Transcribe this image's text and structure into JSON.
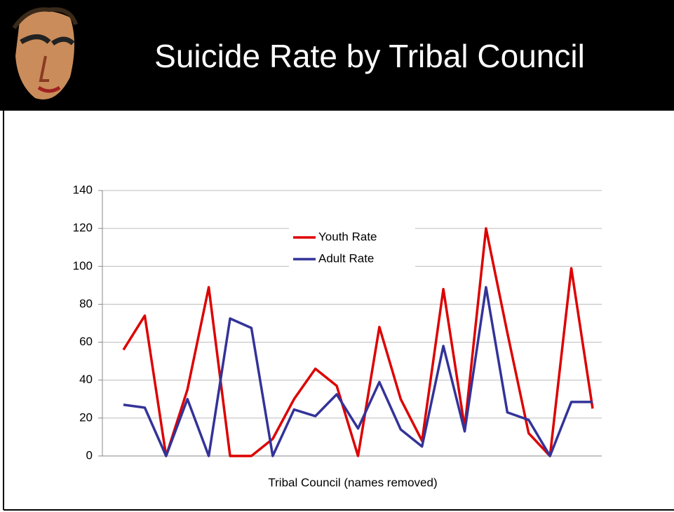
{
  "chart_data": {
    "type": "line",
    "title": "Suicide Rate by Tribal Council",
    "x_label": "Tribal Council (names removed)",
    "categories": [
      null,
      null,
      null,
      null,
      null,
      null,
      null,
      null,
      null,
      null,
      null,
      null,
      null,
      null,
      null,
      null,
      null,
      null,
      null,
      null,
      null,
      null,
      null
    ],
    "series": [
      {
        "name": "Youth Rate",
        "color": "#dd0000",
        "values": [
          56,
          74,
          0,
          35,
          89,
          0,
          0,
          9,
          30,
          46,
          37,
          0,
          68,
          30,
          8,
          88,
          15,
          120,
          65,
          12,
          0,
          99,
          25
        ]
      },
      {
        "name": "Adult Rate",
        "color": "#333399",
        "values": [
          27,
          25.5,
          0,
          30,
          0,
          72.5,
          67.5,
          0,
          24.5,
          21,
          32.5,
          14.5,
          39,
          14,
          5,
          58,
          13,
          89,
          23,
          19,
          0,
          28.5,
          28.5
        ]
      }
    ],
    "ylim": [
      0,
      140
    ],
    "yticks": [
      0,
      20,
      40,
      60,
      80,
      100,
      120,
      140
    ],
    "grid": true
  }
}
